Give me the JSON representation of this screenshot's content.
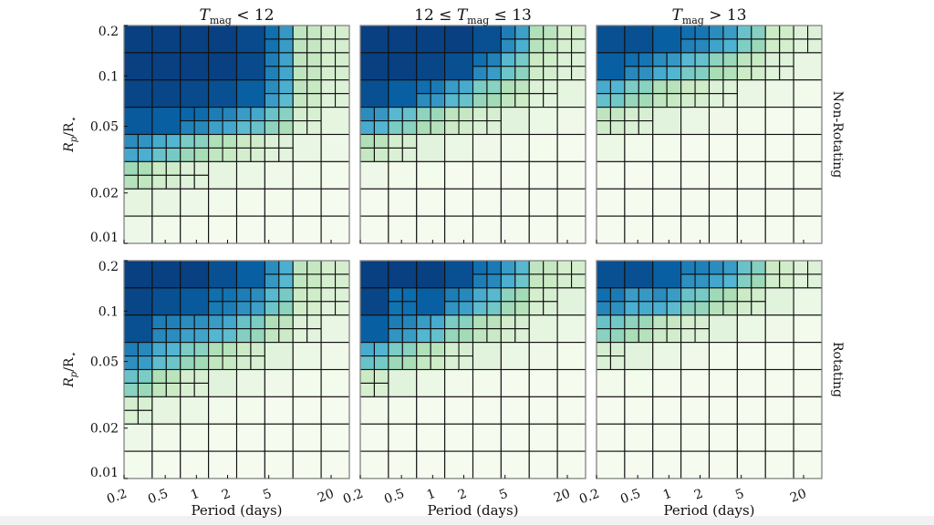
{
  "chart_data": {
    "type": "heatmap",
    "x_scale": "log",
    "y_scale": "log",
    "xlim": [
      0.2,
      30
    ],
    "ylim": [
      0.01,
      0.2
    ],
    "xlabel": "Period (days)",
    "ylabel": {
      "sym": "R",
      "sub": "p",
      "mid": "/R",
      "sub2": "⋆"
    },
    "x_ticks": [
      0.2,
      0.5,
      1,
      2,
      5,
      20
    ],
    "x_tick_labels": [
      "0.2",
      "0.5",
      "1",
      "2",
      "5",
      "20"
    ],
    "y_ticks": [
      0.2,
      0.1,
      0.05,
      0.02,
      0.01
    ],
    "y_tick_labels": [
      "0.2",
      "0.1",
      "0.05",
      "0.02",
      "0.01"
    ],
    "colormap": [
      "#f7fcf0",
      "#e0f3db",
      "#ccebc5",
      "#a8ddb5",
      "#7bccc4",
      "#4eb3d3",
      "#2b8cbe",
      "#0868ac",
      "#084081"
    ],
    "columns": [
      {
        "pre": "",
        "sym": "T",
        "sub": "mag",
        "rel": " < 12"
      },
      {
        "pre": "12 ≤ ",
        "sym": "T",
        "sub": "mag",
        "rel": " ≤ 13"
      },
      {
        "pre": "",
        "sym": "T",
        "sub": "mag",
        "rel": " > 13"
      }
    ],
    "rows": [
      "Non-Rotating",
      "Rotating"
    ],
    "grid_note_rows_top_to_bottom": true,
    "panels": [
      {
        "row": 0,
        "col": 0,
        "values": [
          [
            1,
            1,
            1,
            1,
            0.97,
            0.85,
            0.3,
            0.2
          ],
          [
            1,
            1,
            1,
            1,
            0.97,
            0.8,
            0.3,
            0.2
          ],
          [
            0.98,
            0.98,
            0.97,
            0.95,
            0.9,
            0.75,
            0.3,
            0.15
          ],
          [
            0.92,
            0.9,
            0.88,
            0.8,
            0.7,
            0.55,
            0.2,
            0.1
          ],
          [
            0.75,
            0.65,
            0.5,
            0.35,
            0.25,
            0.15,
            0.08,
            0.05
          ],
          [
            0.4,
            0.25,
            0.15,
            0.1,
            0.06,
            0.04,
            0.03,
            0.02
          ],
          [
            0.1,
            0.08,
            0.05,
            0.03,
            0.02,
            0.02,
            0.01,
            0.01
          ],
          [
            0.05,
            0.03,
            0.02,
            0.01,
            0.01,
            0.01,
            0.01,
            0.01
          ]
        ]
      },
      {
        "row": 0,
        "col": 1,
        "values": [
          [
            1,
            1,
            1,
            1,
            0.95,
            0.8,
            0.35,
            0.2
          ],
          [
            1,
            1,
            0.98,
            0.95,
            0.85,
            0.6,
            0.25,
            0.15
          ],
          [
            0.95,
            0.9,
            0.85,
            0.7,
            0.5,
            0.35,
            0.15,
            0.1
          ],
          [
            0.75,
            0.6,
            0.45,
            0.3,
            0.2,
            0.12,
            0.06,
            0.04
          ],
          [
            0.35,
            0.2,
            0.12,
            0.07,
            0.04,
            0.03,
            0.02,
            0.01
          ],
          [
            0.05,
            0.03,
            0.02,
            0.01,
            0.01,
            0.01,
            0.01,
            0.01
          ],
          [
            0.01,
            0.01,
            0.01,
            0.01,
            0.01,
            0.01,
            0.01,
            0.01
          ],
          [
            0.01,
            0.01,
            0.01,
            0.01,
            0.01,
            0.01,
            0.01,
            0.01
          ]
        ]
      },
      {
        "row": 0,
        "col": 2,
        "values": [
          [
            0.95,
            0.95,
            0.9,
            0.85,
            0.75,
            0.55,
            0.25,
            0.15
          ],
          [
            0.9,
            0.85,
            0.75,
            0.6,
            0.45,
            0.3,
            0.15,
            0.08
          ],
          [
            0.65,
            0.5,
            0.35,
            0.25,
            0.15,
            0.08,
            0.05,
            0.03
          ],
          [
            0.3,
            0.2,
            0.12,
            0.07,
            0.04,
            0.02,
            0.01,
            0.01
          ],
          [
            0.06,
            0.03,
            0.02,
            0.01,
            0.01,
            0.01,
            0.01,
            0.01
          ],
          [
            0.01,
            0.01,
            0.01,
            0.01,
            0.01,
            0.01,
            0.01,
            0.01
          ],
          [
            0.01,
            0.01,
            0.01,
            0.01,
            0.01,
            0.01,
            0.01,
            0.01
          ],
          [
            0.01,
            0.01,
            0.01,
            0.01,
            0.01,
            0.01,
            0.01,
            0.01
          ]
        ]
      },
      {
        "row": 1,
        "col": 0,
        "values": [
          [
            1,
            1,
            1,
            0.95,
            0.9,
            0.75,
            0.3,
            0.2
          ],
          [
            0.98,
            0.95,
            0.92,
            0.85,
            0.8,
            0.6,
            0.25,
            0.15
          ],
          [
            0.95,
            0.8,
            0.75,
            0.7,
            0.55,
            0.35,
            0.15,
            0.08
          ],
          [
            0.8,
            0.65,
            0.5,
            0.35,
            0.25,
            0.12,
            0.06,
            0.04
          ],
          [
            0.55,
            0.35,
            0.2,
            0.12,
            0.07,
            0.04,
            0.02,
            0.02
          ],
          [
            0.2,
            0.1,
            0.06,
            0.03,
            0.02,
            0.01,
            0.01,
            0.01
          ],
          [
            0.05,
            0.03,
            0.02,
            0.01,
            0.01,
            0.01,
            0.01,
            0.01
          ],
          [
            0.02,
            0.01,
            0.01,
            0.01,
            0.01,
            0.01,
            0.01,
            0.01
          ]
        ]
      },
      {
        "row": 1,
        "col": 1,
        "values": [
          [
            1,
            1,
            1,
            0.95,
            0.85,
            0.7,
            0.3,
            0.2
          ],
          [
            0.98,
            0.85,
            0.9,
            0.8,
            0.65,
            0.45,
            0.2,
            0.12
          ],
          [
            0.9,
            0.8,
            0.7,
            0.5,
            0.35,
            0.22,
            0.1,
            0.06
          ],
          [
            0.65,
            0.5,
            0.35,
            0.2,
            0.12,
            0.07,
            0.04,
            0.02
          ],
          [
            0.25,
            0.12,
            0.06,
            0.03,
            0.02,
            0.01,
            0.01,
            0.01
          ],
          [
            0.03,
            0.02,
            0.01,
            0.01,
            0.01,
            0.01,
            0.01,
            0.01
          ],
          [
            0.01,
            0.01,
            0.01,
            0.01,
            0.01,
            0.01,
            0.01,
            0.01
          ],
          [
            0.01,
            0.01,
            0.01,
            0.01,
            0.01,
            0.01,
            0.01,
            0.01
          ]
        ]
      },
      {
        "row": 1,
        "col": 2,
        "values": [
          [
            0.95,
            0.95,
            0.9,
            0.8,
            0.75,
            0.55,
            0.25,
            0.15
          ],
          [
            0.85,
            0.7,
            0.75,
            0.55,
            0.4,
            0.25,
            0.12,
            0.06
          ],
          [
            0.55,
            0.45,
            0.3,
            0.2,
            0.12,
            0.06,
            0.04,
            0.02
          ],
          [
            0.2,
            0.12,
            0.07,
            0.04,
            0.02,
            0.01,
            0.01,
            0.01
          ],
          [
            0.03,
            0.02,
            0.01,
            0.01,
            0.01,
            0.01,
            0.01,
            0.01
          ],
          [
            0.01,
            0.01,
            0.01,
            0.01,
            0.01,
            0.01,
            0.01,
            0.01
          ],
          [
            0.01,
            0.01,
            0.01,
            0.01,
            0.01,
            0.01,
            0.01,
            0.01
          ],
          [
            0.01,
            0.01,
            0.01,
            0.01,
            0.01,
            0.01,
            0.01,
            0.01
          ]
        ]
      }
    ]
  }
}
